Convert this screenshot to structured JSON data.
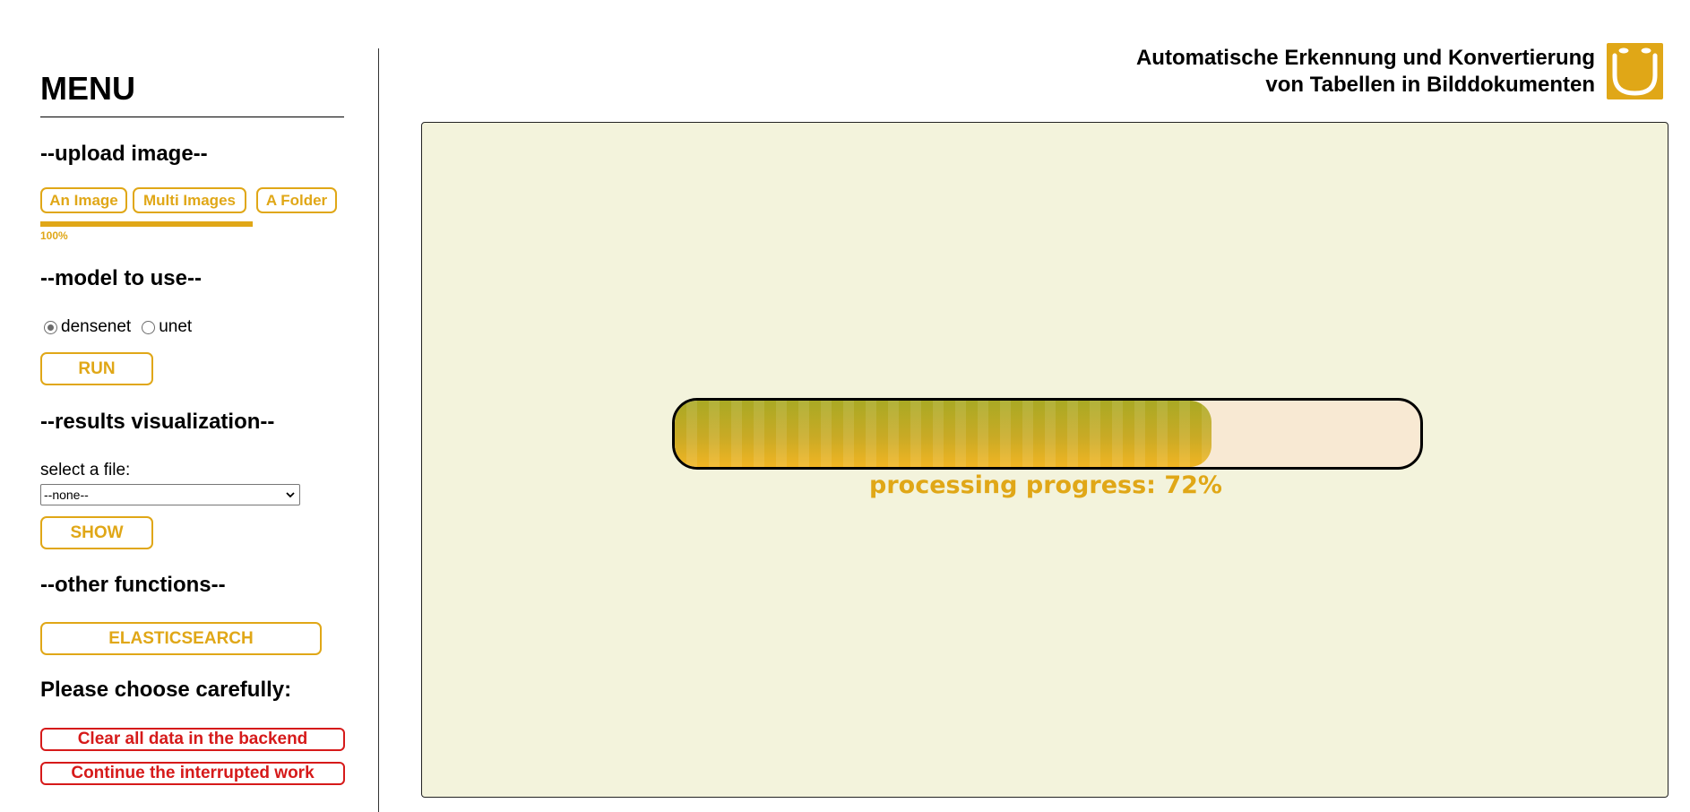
{
  "header": {
    "title_line1": "Automatische Erkennung und Konvertierung",
    "title_line2": "von Tabellen in Bilddokumenten",
    "logo_icon": "smile-logo-icon",
    "brand_color": "#e0a717"
  },
  "sidebar": {
    "menu_title": "MENU",
    "upload": {
      "heading": "--upload image--",
      "buttons": [
        "An Image",
        "Multi Images",
        "A Folder"
      ],
      "progress_value": 1.0,
      "progress_label": "100%"
    },
    "model": {
      "heading": "--model to use--",
      "options": [
        {
          "label": "densenet",
          "selected": true
        },
        {
          "label": "unet",
          "selected": false
        }
      ],
      "run_label": "RUN"
    },
    "results": {
      "heading": "--results visualization--",
      "select_label": "select a file:",
      "select_value": "--none--",
      "show_label": "SHOW"
    },
    "other": {
      "heading": "--other functions--",
      "elastic_label": "ELASTICSEARCH"
    },
    "danger": {
      "heading": "Please choose carefully:",
      "clear_label": "Clear all data in the backend",
      "continue_label": "Continue the interrupted work",
      "color": "#d61a1a"
    }
  },
  "main": {
    "progress_value": 0.72,
    "progress_text": "processing progress: 72%",
    "panel_color": "#f3f3dc"
  }
}
